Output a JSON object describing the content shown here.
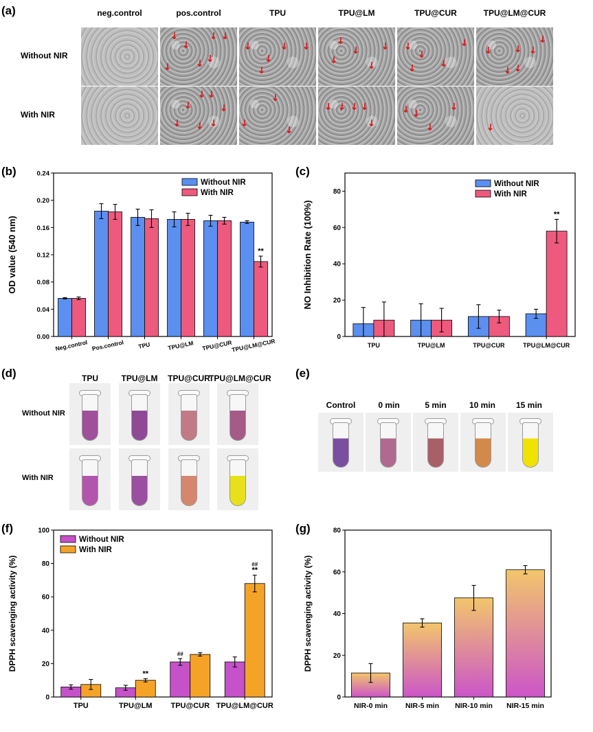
{
  "panels": {
    "a": "(a)",
    "b": "(b)",
    "c": "(c)",
    "d": "(d)",
    "e": "(e)",
    "f": "(f)",
    "g": "(g)"
  },
  "panel_a": {
    "columns": [
      "neg.control",
      "pos.control",
      "TPU",
      "TPU@LM",
      "TPU@CUR",
      "TPU@LM@CUR"
    ],
    "rows": [
      "Without NIR",
      "With NIR"
    ]
  },
  "panel_d": {
    "columns": [
      "TPU",
      "TPU@LM",
      "TPU@CUR",
      "TPU@LM@CUR"
    ],
    "rows": [
      "Without NIR",
      "With NIR"
    ],
    "colors": [
      [
        "#a04f9b",
        "#8f4a96",
        "#c27a86",
        "#a65a86"
      ],
      [
        "#b255ad",
        "#9a4f9f",
        "#d5866c",
        "#e8e01a"
      ]
    ]
  },
  "panel_e": {
    "columns": [
      "Control",
      "0 min",
      "5 min",
      "10 min",
      "15 min"
    ],
    "colors": [
      "#7a4fa0",
      "#b06a8f",
      "#a86068",
      "#d4894a",
      "#f0e300"
    ]
  },
  "chart_data": [
    {
      "id": "b",
      "type": "bar",
      "ylabel": "OD value (540 nm)",
      "ylim": [
        0,
        0.24
      ],
      "yticks": [
        "0.00",
        "0.04",
        "0.08",
        "0.12",
        "0.16",
        "0.20",
        "0.24"
      ],
      "categories": [
        "Neg.control",
        "Pos.control",
        "TPU",
        "TPU@LM",
        "TPU@CUR",
        "TPU@LM@CUR"
      ],
      "series": [
        {
          "name": "Without NIR",
          "color": "#5b8ff0",
          "values": [
            0.056,
            0.184,
            0.175,
            0.172,
            0.17,
            0.168
          ],
          "errors": [
            0.001,
            0.011,
            0.012,
            0.011,
            0.008,
            0.002
          ]
        },
        {
          "name": "With NIR",
          "color": "#ee5a7d",
          "values": [
            0.056,
            0.183,
            0.173,
            0.172,
            0.17,
            0.11
          ],
          "errors": [
            0.002,
            0.011,
            0.013,
            0.009,
            0.005,
            0.008
          ]
        }
      ],
      "annotations": [
        {
          "category": 5,
          "series": 1,
          "text": "**"
        }
      ],
      "legend": "top-right"
    },
    {
      "id": "c",
      "type": "bar",
      "ylabel": "NO Inhibition Rate (100%)",
      "ylim": [
        0,
        90
      ],
      "yticks": [
        "0",
        "20",
        "40",
        "60",
        "80"
      ],
      "categories": [
        "TPU",
        "TPU@LM",
        "TPU@CUR",
        "TPU@LM@CUR"
      ],
      "series": [
        {
          "name": "Without NIR",
          "color": "#5b8ff0",
          "values": [
            7,
            9,
            11,
            12.5
          ],
          "errors": [
            9,
            9,
            6.5,
            2.5
          ]
        },
        {
          "name": "With NIR",
          "color": "#ee5a7d",
          "values": [
            9,
            9,
            11,
            58
          ],
          "errors": [
            10,
            6.5,
            3.5,
            6.5
          ]
        }
      ],
      "annotations": [
        {
          "category": 3,
          "series": 1,
          "text": "**"
        }
      ],
      "legend": "top-right"
    },
    {
      "id": "f",
      "type": "bar",
      "ylabel": "DPPH scavenging activity (%)",
      "ylim": [
        0,
        100
      ],
      "yticks": [
        "0",
        "20",
        "40",
        "60",
        "80",
        "100"
      ],
      "categories": [
        "TPU",
        "TPU@LM",
        "TPU@CUR",
        "TPU@LM@CUR"
      ],
      "series": [
        {
          "name": "Without NIR",
          "color": "#c552c9",
          "values": [
            6,
            5.5,
            21,
            21
          ],
          "errors": [
            1.3,
            1.5,
            2,
            3
          ]
        },
        {
          "name": "With NIR",
          "color": "#f5a327",
          "values": [
            7.5,
            10,
            25.5,
            68
          ],
          "errors": [
            3,
            1,
            1,
            5
          ]
        }
      ],
      "annotations": [
        {
          "category": 1,
          "series": 1,
          "text": "**"
        },
        {
          "category": 2,
          "series": 0,
          "text": "##"
        },
        {
          "category": 3,
          "series": 1,
          "text": "**"
        },
        {
          "category": 3,
          "series": 1,
          "text": "##"
        }
      ],
      "legend": "top-left"
    },
    {
      "id": "g",
      "type": "bar",
      "ylabel": "DPPH scavenging activity (%)",
      "ylim": [
        0,
        80
      ],
      "yticks": [
        "0",
        "20",
        "40",
        "60",
        "80"
      ],
      "categories": [
        "NIR-0 min",
        "NIR-5 min",
        "NIR-10 min",
        "NIR-15 min"
      ],
      "series": [
        {
          "name": "DPPH",
          "color": "#f0c06a",
          "values": [
            11.5,
            35.5,
            47.5,
            61
          ],
          "errors": [
            4.5,
            2,
            6,
            2
          ]
        }
      ],
      "gradient": [
        "#f2c66b",
        "#cc55c8"
      ]
    }
  ]
}
